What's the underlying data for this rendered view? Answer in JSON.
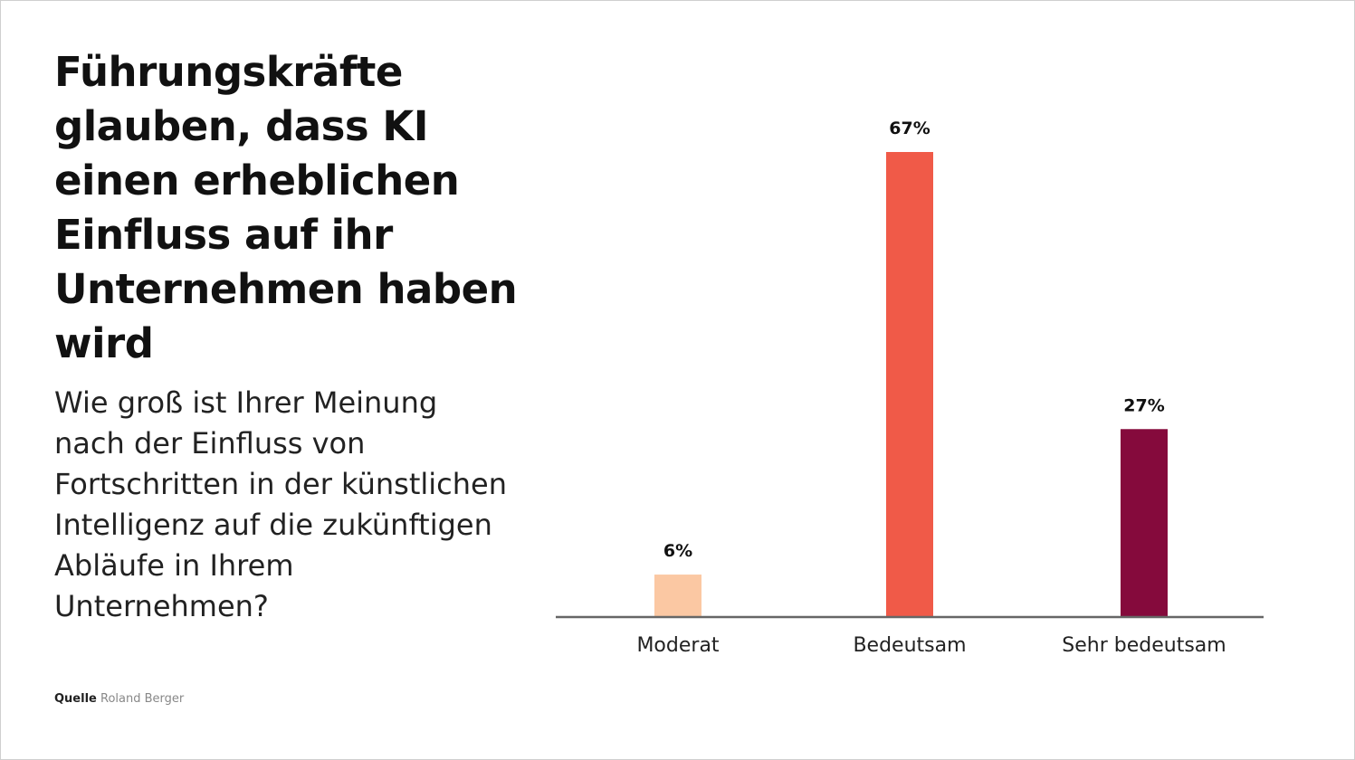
{
  "title": "Führungskräfte glauben, dass KI einen erheblichen Einfluss auf ihr Unternehmen haben wird",
  "subtitle": "Wie groß ist Ihrer Meinung nach der Einfluss von Fortschritten in der künstlichen Intelligenz auf die zukünftigen Abläufe in Ihrem Unternehmen?",
  "source": {
    "label": "Quelle",
    "value": "Roland Berger"
  },
  "chart_data": {
    "type": "bar",
    "categories": [
      "Moderat",
      "Bedeutsam",
      "Sehr bedeutsam"
    ],
    "values": [
      6,
      67,
      27
    ],
    "data_labels": [
      "6%",
      "67%",
      "27%"
    ],
    "colors": [
      "#FBC8A3",
      "#F05A48",
      "#850A3C"
    ],
    "xlabel": "",
    "ylabel": "",
    "ylim": [
      0,
      70
    ],
    "grid": false,
    "legend": "none"
  }
}
